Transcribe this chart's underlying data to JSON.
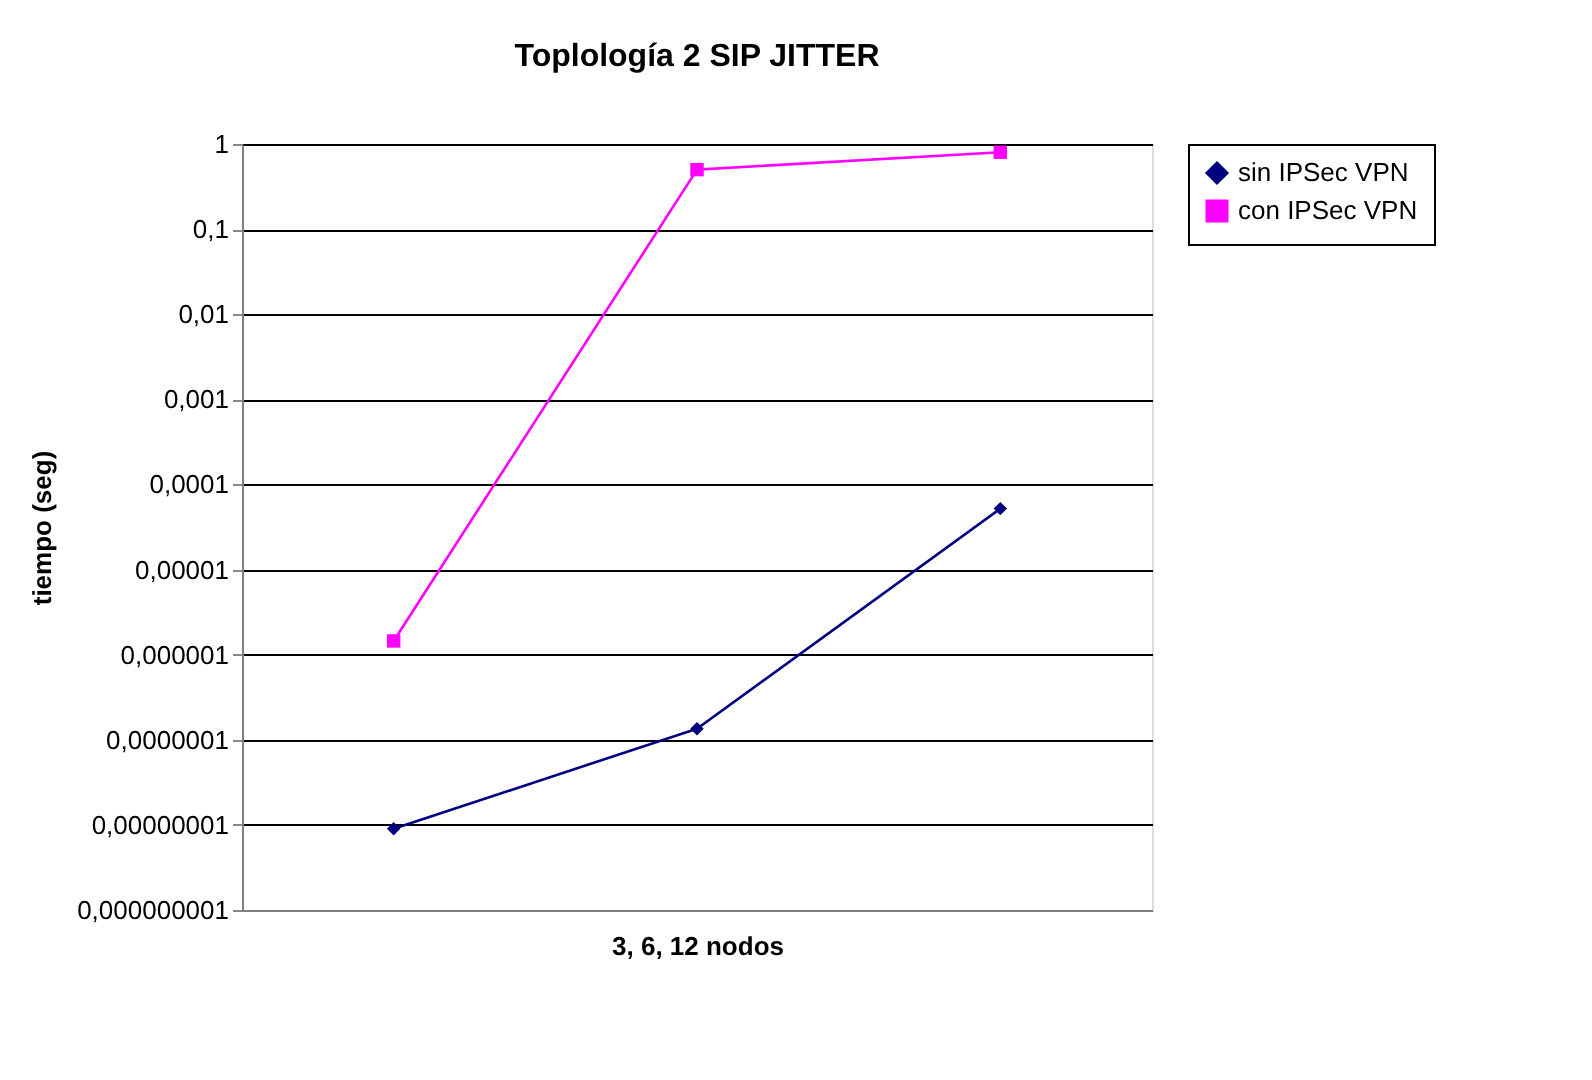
{
  "chart_data": {
    "type": "line",
    "title": "Toplología 2 SIP JITTER",
    "xlabel": "3,   6,   12  nodos",
    "ylabel": "tiempo (seg)",
    "categories": [
      null,
      null,
      null
    ],
    "series": [
      {
        "name": "sin IPSec VPN",
        "color": "#000080",
        "marker": "diamond",
        "values": [
          9e-09,
          1.35e-07,
          5.2e-05
        ]
      },
      {
        "name": "con IPSec VPN",
        "color": "#ff00ff",
        "marker": "square",
        "values": [
          1.45e-06,
          0.5,
          0.8
        ]
      }
    ],
    "log": true,
    "ylim": [
      1e-09,
      1
    ],
    "yticks": [
      {
        "value": 1e-09,
        "label": "0,000000001"
      },
      {
        "value": 1e-08,
        "label": "0,00000001"
      },
      {
        "value": 1e-07,
        "label": "0,0000001"
      },
      {
        "value": 1e-06,
        "label": "0,000001"
      },
      {
        "value": 1e-05,
        "label": "0,00001"
      },
      {
        "value": 0.0001,
        "label": "0,0001"
      },
      {
        "value": 0.001,
        "label": "0,001"
      },
      {
        "value": 0.01,
        "label": "0,01"
      },
      {
        "value": 0.1,
        "label": "0,1"
      },
      1
    ],
    "grid": "y",
    "legend": "right"
  }
}
